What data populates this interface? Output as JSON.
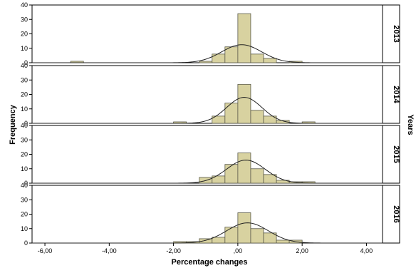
{
  "chart_data": {
    "type": "bar",
    "subtype": "histogram-panels",
    "xlabel": "Percentage changes",
    "ylabel": "Frequency",
    "facet_label": "Years",
    "x_ticks": [
      -6,
      -4,
      -2,
      0,
      2,
      4
    ],
    "x_tick_labels": [
      "-6,00",
      "-4,00",
      "-2,00",
      ",00",
      "2,00",
      "4,00"
    ],
    "xlim": [
      -6.4,
      4.5
    ],
    "ylim": [
      0,
      40
    ],
    "y_ticks": [
      0,
      10,
      20,
      30,
      40
    ],
    "bin_width": 0.4,
    "bar_color": "#d8d2a0",
    "curve": "normal",
    "panels": [
      {
        "year": "2013",
        "bins": [
          [
            -5.2,
            1
          ],
          [
            -1.2,
            1
          ],
          [
            -0.8,
            6
          ],
          [
            -0.4,
            11
          ],
          [
            0.0,
            34
          ],
          [
            0.4,
            6
          ],
          [
            0.8,
            3
          ],
          [
            1.6,
            1
          ]
        ],
        "curve_peak": 12.5,
        "curve_mean": 0.12,
        "curve_sd": 0.62
      },
      {
        "year": "2014",
        "bins": [
          [
            -2.0,
            1
          ],
          [
            -0.8,
            5
          ],
          [
            -0.4,
            14
          ],
          [
            0.0,
            27
          ],
          [
            0.4,
            9
          ],
          [
            0.8,
            5
          ],
          [
            1.2,
            2
          ],
          [
            2.0,
            1
          ]
        ],
        "curve_peak": 18,
        "curve_mean": 0.2,
        "curve_sd": 0.55
      },
      {
        "year": "2015",
        "bins": [
          [
            -1.2,
            4
          ],
          [
            -0.8,
            5
          ],
          [
            -0.4,
            13
          ],
          [
            0.0,
            21
          ],
          [
            0.4,
            10
          ],
          [
            0.8,
            6
          ],
          [
            1.2,
            2
          ],
          [
            1.6,
            1
          ],
          [
            2.0,
            1
          ]
        ],
        "curve_peak": 16,
        "curve_mean": 0.25,
        "curve_sd": 0.6
      },
      {
        "year": "2016",
        "bins": [
          [
            -2.0,
            1
          ],
          [
            -1.6,
            1
          ],
          [
            -1.2,
            3
          ],
          [
            -0.8,
            4
          ],
          [
            -0.4,
            11
          ],
          [
            0.0,
            21
          ],
          [
            0.4,
            10
          ],
          [
            0.8,
            7
          ],
          [
            1.2,
            2
          ],
          [
            1.6,
            2
          ]
        ],
        "curve_peak": 14,
        "curve_mean": 0.3,
        "curve_sd": 0.65
      }
    ]
  }
}
